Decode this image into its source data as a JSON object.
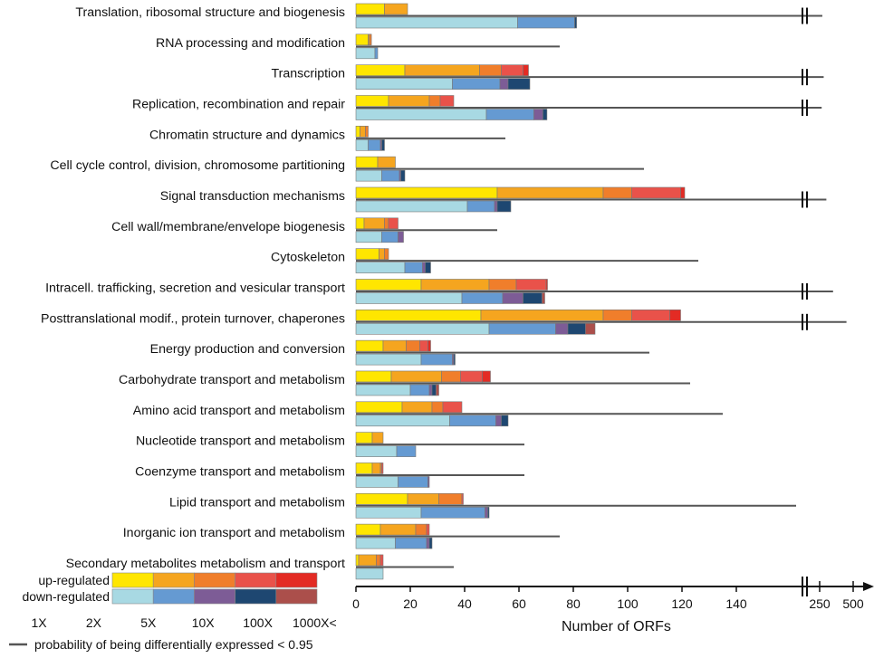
{
  "chart_data": {
    "type": "bar",
    "title": "",
    "xlabel": "Number of ORFs",
    "ylabel": "",
    "xlim": [
      0,
      160
    ],
    "x_ticks": [
      0,
      20,
      40,
      60,
      80,
      100,
      120,
      140
    ],
    "x_ticks_broken": [
      "250",
      "500"
    ],
    "fold_levels": [
      "1X",
      "2X",
      "5X",
      "10X",
      "100X",
      "1000X<"
    ],
    "series_names": [
      "up-regulated",
      "down-regulated"
    ],
    "line_series_label": "probability of being differentially expressed < 0.95",
    "colors": {
      "up": [
        "#FFE600",
        "#F5A51F",
        "#F07E2B",
        "#E9524A",
        "#E32B24"
      ],
      "down": [
        "#A8D9E3",
        "#659AD2",
        "#7D5C96",
        "#1E4771",
        "#AB4F4B"
      ],
      "line": "#555555",
      "axis": "#111111"
    },
    "categories": [
      {
        "name": "Translation, ribosomal structure and biogenesis",
        "up": [
          10.5,
          8.5,
          0,
          0,
          0
        ],
        "down": [
          59.5,
          21,
          0,
          0.7,
          0
        ],
        "line": 270,
        "line_broken": true
      },
      {
        "name": "RNA processing and modification",
        "up": [
          4.5,
          0.5,
          0.7,
          0,
          0
        ],
        "down": [
          7,
          1,
          0,
          0,
          0
        ],
        "line": 75,
        "line_broken": false
      },
      {
        "name": "Transcription",
        "up": [
          18,
          27.5,
          8,
          8,
          2
        ],
        "down": [
          35.5,
          17.5,
          3,
          8,
          0
        ],
        "line": 280,
        "line_broken": true
      },
      {
        "name": "Replication, recombination and repair",
        "up": [
          12,
          15,
          4,
          5,
          0
        ],
        "down": [
          48,
          17.5,
          3.3,
          1.5,
          0
        ],
        "line": 265,
        "line_broken": true
      },
      {
        "name": "Chromatin structure and dynamics",
        "up": [
          1.5,
          2,
          1,
          0,
          0
        ],
        "down": [
          4.5,
          4.5,
          0.5,
          1,
          0
        ],
        "line": 55,
        "line_broken": false
      },
      {
        "name": "Cell cycle control, division, chromosome partitioning",
        "up": [
          8,
          6.5,
          0,
          0,
          0
        ],
        "down": [
          9.5,
          6.5,
          0.5,
          1.5,
          0
        ],
        "line": 106,
        "line_broken": false
      },
      {
        "name": "Signal transduction mechanisms",
        "up": [
          52,
          39,
          10.5,
          18,
          1.5
        ],
        "down": [
          41,
          10,
          1,
          5,
          0
        ],
        "line": 300,
        "line_broken": true
      },
      {
        "name": "Cell wall/membrane/envelope biogenesis",
        "up": [
          3,
          7.5,
          1.5,
          3.5,
          0
        ],
        "down": [
          9.5,
          6,
          2,
          0,
          0
        ],
        "line": 52,
        "line_broken": false
      },
      {
        "name": "Cytoskeleton",
        "up": [
          8.5,
          2,
          1.5,
          0,
          0
        ],
        "down": [
          18,
          6.5,
          1,
          2,
          0
        ],
        "line": 126,
        "line_broken": false
      },
      {
        "name": "Intracell. trafficking, secretion and vesicular transport",
        "up": [
          24,
          25,
          10,
          11,
          0.5
        ],
        "down": [
          39,
          15,
          7.5,
          7,
          1
        ],
        "line": 350,
        "line_broken": true
      },
      {
        "name": "Posttranslational modif., protein turnover, chaperones",
        "up": [
          46,
          45,
          10.5,
          14,
          4
        ],
        "down": [
          49,
          24.5,
          4.5,
          6.5,
          3.5
        ],
        "line": 450,
        "line_broken": true
      },
      {
        "name": "Energy production and conversion",
        "up": [
          10,
          8.5,
          5,
          3,
          1
        ],
        "down": [
          24,
          11.5,
          0.5,
          0.5,
          0
        ],
        "line": 108,
        "line_broken": false
      },
      {
        "name": "Carbohydrate transport and metabolism",
        "up": [
          13,
          18.5,
          7,
          8,
          3
        ],
        "down": [
          20,
          7,
          1,
          1.5,
          1
        ],
        "line": 123,
        "line_broken": false
      },
      {
        "name": "Amino acid transport and metabolism",
        "up": [
          17,
          11,
          4,
          7,
          0
        ],
        "down": [
          34.5,
          17,
          2,
          2.5,
          0
        ],
        "line": 135,
        "line_broken": false
      },
      {
        "name": "Nucleotide transport and metabolism",
        "up": [
          6,
          4,
          0,
          0,
          0
        ],
        "down": [
          15,
          7,
          0,
          0,
          0
        ],
        "line": 62,
        "line_broken": false
      },
      {
        "name": "Coenzyme transport and metabolism",
        "up": [
          6,
          3,
          0.5,
          0.5,
          0
        ],
        "down": [
          15.5,
          11,
          0.5,
          0,
          0
        ],
        "line": 62,
        "line_broken": false
      },
      {
        "name": "Lipid transport and metabolism",
        "up": [
          19,
          11.5,
          8.5,
          0.5,
          0
        ],
        "down": [
          24,
          23.5,
          1,
          0.5,
          0
        ],
        "line": 162,
        "line_broken": false
      },
      {
        "name": "Inorganic ion transport and metabolism",
        "up": [
          9,
          13,
          4,
          1,
          0
        ],
        "down": [
          14.5,
          11.5,
          1,
          1,
          0
        ],
        "line": 75,
        "line_broken": false
      },
      {
        "name": "Secondary metabolites metabolism and transport",
        "up": [
          1,
          6.5,
          1.5,
          1,
          0
        ],
        "down": [
          10,
          0,
          0,
          0,
          0
        ],
        "line": 36,
        "line_broken": false
      }
    ]
  }
}
